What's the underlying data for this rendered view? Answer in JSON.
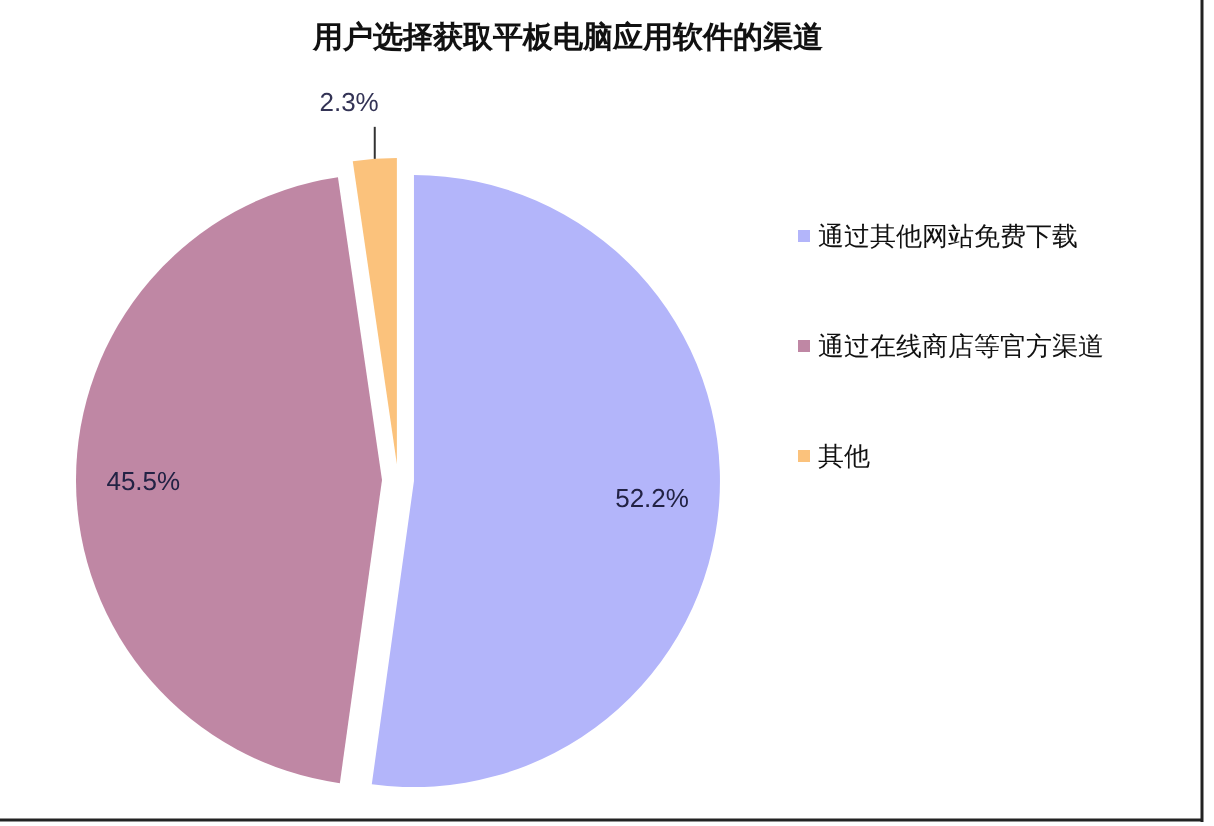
{
  "chart_data": {
    "type": "pie",
    "title": "用户选择获取平板电脑应用软件的渠道",
    "categories": [
      "通过其他网站免费下载",
      "通过在线商店等官方渠道",
      "其他"
    ],
    "values": [
      52.2,
      45.5,
      2.3
    ],
    "colors": [
      "#b3b5fa",
      "#bf87a4",
      "#fbc27c"
    ],
    "value_labels": [
      "52.2%",
      "45.5%",
      "2.3%"
    ],
    "legend": "right"
  }
}
